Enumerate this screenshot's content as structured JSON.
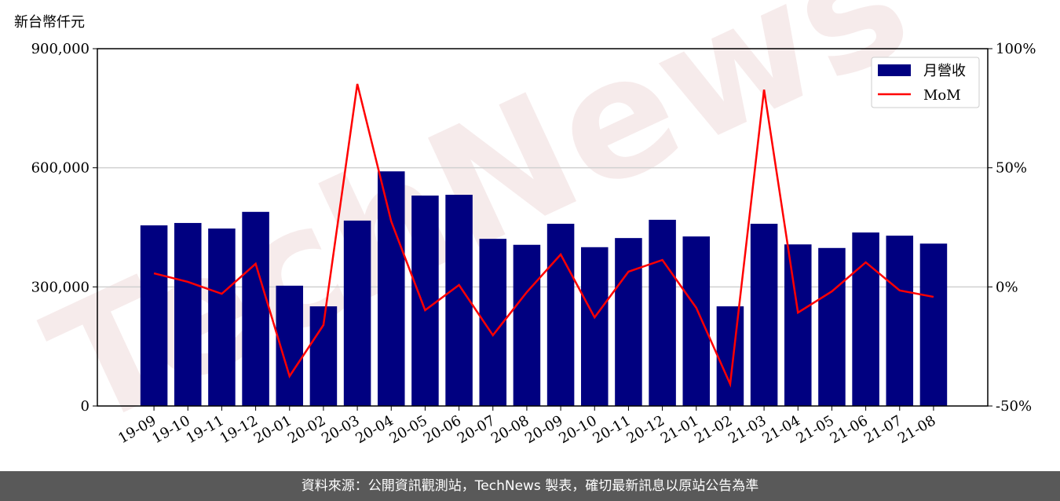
{
  "chart_data": {
    "type": "bar_line",
    "y_label": "新台幣仟元",
    "watermark": "TechNews",
    "categories": [
      "19-09",
      "19-10",
      "19-11",
      "19-12",
      "20-01",
      "20-02",
      "20-03",
      "20-04",
      "20-05",
      "20-06",
      "20-07",
      "20-08",
      "20-09",
      "20-10",
      "20-11",
      "20-12",
      "21-01",
      "21-02",
      "21-03",
      "21-04",
      "21-05",
      "21-06",
      "21-07",
      "21-08"
    ],
    "series": [
      {
        "name": "月營收",
        "type": "bar",
        "color": "#000080",
        "values": [
          455000,
          461000,
          447000,
          489000,
          303000,
          251000,
          467000,
          591000,
          530000,
          532000,
          421000,
          406000,
          459000,
          400000,
          423000,
          469000,
          427000,
          251000,
          459000,
          407000,
          398000,
          437000,
          429000,
          409000
        ]
      },
      {
        "name": "MoM",
        "type": "line",
        "axis": "y2",
        "color": "#ff0000",
        "values": [
          5.7,
          2.1,
          -2.9,
          9.7,
          -37.5,
          -16,
          85.2,
          27.5,
          -9.8,
          0.8,
          -20.3,
          -2.2,
          13.6,
          -12.8,
          6.4,
          11.3,
          -8.8,
          -40.8,
          82.8,
          -10.8,
          -1.9,
          10.3,
          -1.5,
          -4.2
        ]
      }
    ],
    "ylim": [
      0,
      900000
    ],
    "yticks": [
      0,
      {
        "value": 300000,
        "label": "300,000"
      },
      {
        "value": 600000,
        "label": "600,000"
      },
      {
        "value": 900000,
        "label": "900,000"
      }
    ],
    "y2lim": [
      -50,
      100
    ],
    "y2ticks": [
      {
        "value": -50,
        "label": "-50%"
      },
      {
        "value": 0,
        "label": "0%"
      },
      {
        "value": 50,
        "label": "50%"
      },
      {
        "value": 100,
        "label": "100%"
      }
    ],
    "grid": true,
    "legend": "upper right",
    "source": "資料來源：公開資訊觀測站，TechNews 製表，確切最新訊息以原站公告為準"
  }
}
